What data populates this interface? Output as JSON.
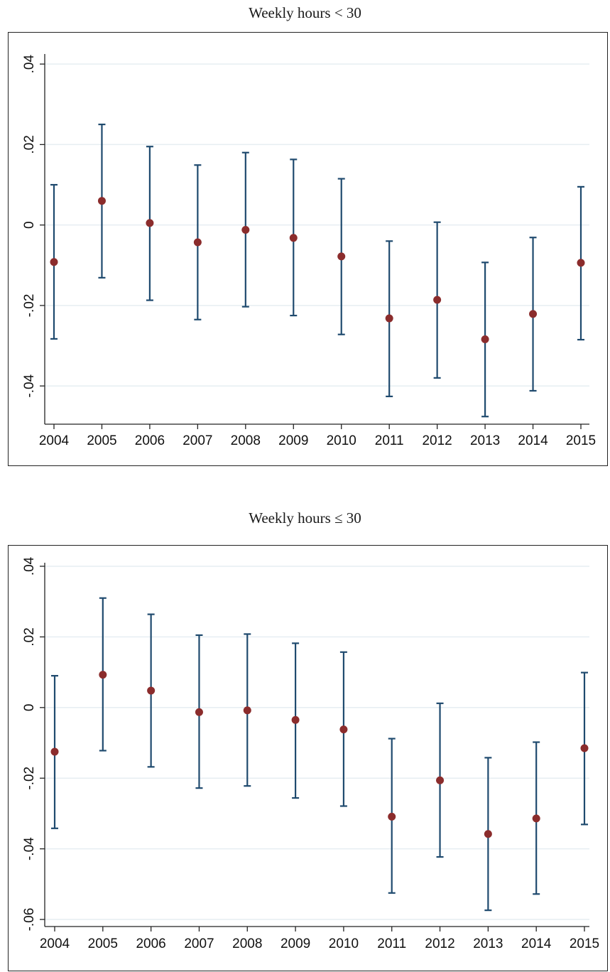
{
  "chart_data": [
    {
      "type": "scatter",
      "title": "Weekly hours < 30",
      "xlabel": "",
      "ylabel": "",
      "x": [
        2004,
        2005,
        2006,
        2007,
        2008,
        2009,
        2010,
        2011,
        2012,
        2013,
        2014,
        2015
      ],
      "x_tick_labels": [
        "2004",
        "2005",
        "2006",
        "2007",
        "2008",
        "2009",
        "2010",
        "2011",
        "2012",
        "2013",
        "2014",
        "2015"
      ],
      "y_ticks": [
        -0.04,
        -0.02,
        0,
        0.02,
        0.04
      ],
      "y_tick_labels": [
        "-.04",
        "-.02",
        "0",
        ".02",
        ".04"
      ],
      "ylim": [
        -0.0495,
        0.0425
      ],
      "grid": true,
      "series": [
        {
          "estimate": [
            -0.0092,
            0.006,
            0.0005,
            -0.0043,
            -0.0012,
            -0.0032,
            -0.0078,
            -0.0232,
            -0.0186,
            -0.0284,
            -0.0221,
            -0.0094
          ],
          "ci_low": [
            -0.0283,
            -0.0131,
            -0.0187,
            -0.0235,
            -0.0203,
            -0.0225,
            -0.0272,
            -0.0426,
            -0.038,
            -0.0476,
            -0.0412,
            -0.0285
          ],
          "ci_high": [
            0.01,
            0.025,
            0.0195,
            0.0149,
            0.018,
            0.0163,
            0.0115,
            -0.004,
            0.0007,
            -0.0093,
            -0.0031,
            0.0095
          ]
        }
      ],
      "colors": {
        "point": "#8b2c2c",
        "error_bar": "#1f4a6e",
        "grid": "#e6eef2"
      }
    },
    {
      "type": "scatter",
      "title": "Weekly hours ≤ 30",
      "xlabel": "",
      "ylabel": "",
      "x": [
        2004,
        2005,
        2006,
        2007,
        2008,
        2009,
        2010,
        2011,
        2012,
        2013,
        2014,
        2015
      ],
      "x_tick_labels": [
        "2004",
        "2005",
        "2006",
        "2007",
        "2008",
        "2009",
        "2010",
        "2011",
        "2012",
        "2013",
        "2014",
        "2015"
      ],
      "y_ticks": [
        -0.06,
        -0.04,
        -0.02,
        0,
        0.02,
        0.04
      ],
      "y_tick_labels": [
        "-.06",
        "-.04",
        "-.02",
        "0",
        ".02",
        ".04"
      ],
      "ylim": [
        -0.062,
        0.041
      ],
      "grid": true,
      "series": [
        {
          "estimate": [
            -0.0125,
            0.0093,
            0.0048,
            -0.0013,
            -0.0008,
            -0.0035,
            -0.0062,
            -0.0309,
            -0.0206,
            -0.0358,
            -0.0314,
            -0.0115
          ],
          "ci_low": [
            -0.0342,
            -0.0122,
            -0.0168,
            -0.0228,
            -0.0222,
            -0.0256,
            -0.0279,
            -0.0525,
            -0.0423,
            -0.0574,
            -0.0528,
            -0.0331
          ],
          "ci_high": [
            0.009,
            0.031,
            0.0264,
            0.0205,
            0.0208,
            0.0182,
            0.0157,
            -0.0088,
            0.0012,
            -0.0142,
            -0.0098,
            0.0099
          ]
        }
      ],
      "colors": {
        "point": "#8b2c2c",
        "error_bar": "#1f4a6e",
        "grid": "#e6eef2"
      }
    }
  ]
}
